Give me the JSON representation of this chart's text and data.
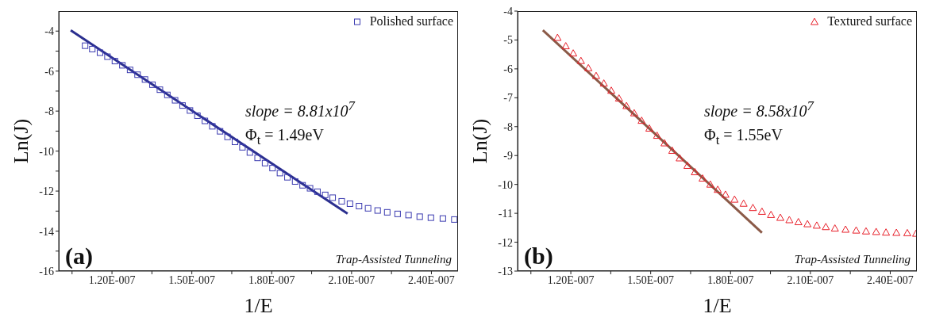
{
  "chart_data": [
    {
      "type": "scatter",
      "xlabel": "1/E",
      "ylabel": "Ln(J)",
      "xlim": [
        1e-07,
        2.5e-07
      ],
      "xticks": [
        {
          "value": 1.05e-07,
          "label": null
        },
        {
          "value": 1.2e-07,
          "label": "1.20E-007"
        },
        {
          "value": 1.35e-07,
          "label": null
        },
        {
          "value": 1.5e-07,
          "label": "1.50E-007"
        },
        {
          "value": 1.65e-07,
          "label": null
        },
        {
          "value": 1.8e-07,
          "label": "1.80E-007"
        },
        {
          "value": 1.95e-07,
          "label": null
        },
        {
          "value": 2.1e-07,
          "label": "2.10E-007"
        },
        {
          "value": 2.25e-07,
          "label": null
        },
        {
          "value": 2.4e-07,
          "label": "2.40E-007"
        }
      ],
      "ylim": [
        -16,
        -3
      ],
      "yticks": [
        -16,
        {
          "value": -15,
          "label": null
        },
        -14,
        {
          "value": -13,
          "label": null
        },
        -12,
        {
          "value": -11,
          "label": null
        },
        -10,
        {
          "value": -9,
          "label": null
        },
        -8,
        {
          "value": -7,
          "label": null
        },
        -6,
        {
          "value": -5,
          "label": null
        },
        -4
      ],
      "legend": "top right",
      "series": [
        {
          "name": "Polished surface",
          "color": "#3b3bb0",
          "marker": "square",
          "x": [
            1.099e-07,
            1.126e-07,
            1.155e-07,
            1.183e-07,
            1.211e-07,
            1.239e-07,
            1.268e-07,
            1.296e-07,
            1.324e-07,
            1.352e-07,
            1.38e-07,
            1.408e-07,
            1.437e-07,
            1.465e-07,
            1.493e-07,
            1.521e-07,
            1.549e-07,
            1.577e-07,
            1.606e-07,
            1.634e-07,
            1.662e-07,
            1.69e-07,
            1.718e-07,
            1.747e-07,
            1.775e-07,
            1.803e-07,
            1.831e-07,
            1.859e-07,
            1.888e-07,
            1.916e-07,
            1.944e-07,
            1.972e-07,
            2.001e-07,
            2.029e-07,
            2.063e-07,
            2.094e-07,
            2.128e-07,
            2.162e-07,
            2.198e-07,
            2.234e-07,
            2.273e-07,
            2.314e-07,
            2.356e-07,
            2.398e-07,
            2.443e-07,
            2.486e-07
          ],
          "values": [
            -4.73,
            -4.9,
            -5.08,
            -5.28,
            -5.5,
            -5.71,
            -5.94,
            -6.18,
            -6.42,
            -6.68,
            -6.93,
            -7.19,
            -7.46,
            -7.72,
            -7.97,
            -8.23,
            -8.49,
            -8.76,
            -9.01,
            -9.29,
            -9.54,
            -9.81,
            -10.07,
            -10.34,
            -10.6,
            -10.85,
            -11.1,
            -11.31,
            -11.52,
            -11.71,
            -11.86,
            -12.03,
            -12.19,
            -12.33,
            -12.51,
            -12.63,
            -12.75,
            -12.86,
            -12.97,
            -13.06,
            -13.14,
            -13.2,
            -13.28,
            -13.33,
            -13.37,
            -13.42
          ]
        },
        {
          "type": "line",
          "color": "#2b2f8f",
          "marker": "none",
          "x": [
            1.045e-07,
            2.085e-07
          ],
          "values": [
            -3.96,
            -13.13
          ]
        }
      ],
      "annotations": [
        "slope = 8.81x10$^{7}$",
        "Φ$_{t}$ = 1.49eV",
        "(a)",
        "Trap-Assisted Tunneling"
      ]
    },
    {
      "type": "scatter",
      "xlabel": "1/E",
      "ylabel": "Ln(J)",
      "xlim": [
        1e-07,
        2.5e-07
      ],
      "xticks": [
        {
          "value": 1.05e-07,
          "label": null
        },
        {
          "value": 1.2e-07,
          "label": "1.20E-007"
        },
        {
          "value": 1.35e-07,
          "label": null
        },
        {
          "value": 1.5e-07,
          "label": "1.50E-007"
        },
        {
          "value": 1.65e-07,
          "label": null
        },
        {
          "value": 1.8e-07,
          "label": "1.80E-007"
        },
        {
          "value": 1.95e-07,
          "label": null
        },
        {
          "value": 2.1e-07,
          "label": "2.10E-007"
        },
        {
          "value": 2.25e-07,
          "label": null
        },
        {
          "value": 2.4e-07,
          "label": "2.40E-007"
        }
      ],
      "ylim": [
        -13,
        -4
      ],
      "yticks": [
        -13,
        -12,
        -11,
        -10,
        -9,
        -8,
        -7,
        -6,
        -5,
        -4
      ],
      "legend": "top right",
      "series": [
        {
          "name": "Textured surface",
          "color": "#e8202a",
          "marker": "triangle",
          "x": [
            1.15e-07,
            1.181e-07,
            1.209e-07,
            1.238e-07,
            1.266e-07,
            1.295e-07,
            1.324e-07,
            1.352e-07,
            1.381e-07,
            1.409e-07,
            1.438e-07,
            1.466e-07,
            1.495e-07,
            1.524e-07,
            1.552e-07,
            1.581e-07,
            1.609e-07,
            1.638e-07,
            1.666e-07,
            1.695e-07,
            1.724e-07,
            1.752e-07,
            1.781e-07,
            1.815e-07,
            1.849e-07,
            1.884e-07,
            1.918e-07,
            1.952e-07,
            1.987e-07,
            2.021e-07,
            2.055e-07,
            2.089e-07,
            2.124e-07,
            2.158e-07,
            2.192e-07,
            2.232e-07,
            2.272e-07,
            2.309e-07,
            2.347e-07,
            2.384e-07,
            2.423e-07,
            2.464e-07,
            2.497e-07
          ],
          "values": [
            -4.92,
            -5.21,
            -5.46,
            -5.72,
            -5.97,
            -6.24,
            -6.5,
            -6.75,
            -7.02,
            -7.28,
            -7.53,
            -7.79,
            -8.06,
            -8.31,
            -8.57,
            -8.83,
            -9.09,
            -9.35,
            -9.57,
            -9.79,
            -10.0,
            -10.18,
            -10.35,
            -10.52,
            -10.66,
            -10.81,
            -10.94,
            -11.05,
            -11.15,
            -11.23,
            -11.3,
            -11.37,
            -11.42,
            -11.47,
            -11.52,
            -11.56,
            -11.59,
            -11.62,
            -11.64,
            -11.66,
            -11.67,
            -11.68,
            -11.7
          ]
        },
        {
          "type": "line",
          "color": "#8b5a48",
          "marker": "none",
          "x": [
            1.095e-07,
            1.918e-07
          ],
          "values": [
            -4.66,
            -11.67
          ]
        }
      ],
      "annotations": [
        "slope = 8.58x10$^{7}$",
        "Φ$_{t}$ = 1.55eV",
        "(b)",
        "Trap-Assisted Tunneling"
      ]
    }
  ]
}
